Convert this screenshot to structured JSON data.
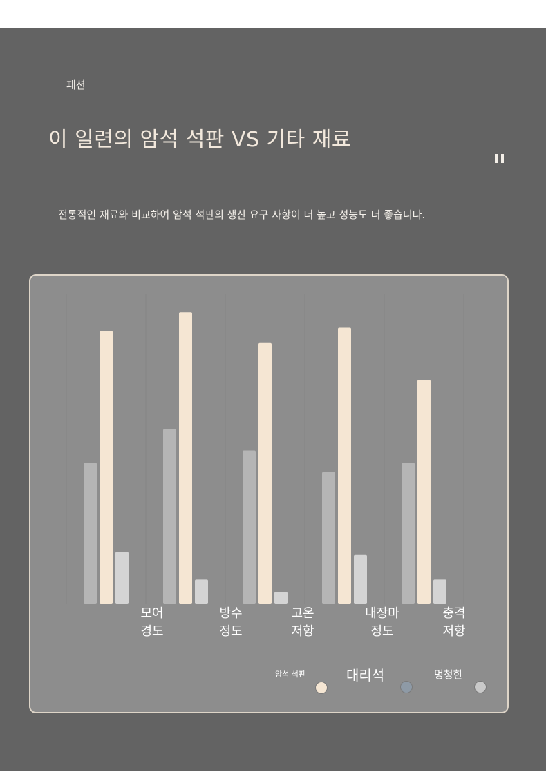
{
  "header": {
    "category": "패션",
    "title": "이 일련의 암석 석판 VS 기타 재료",
    "subtitle": "전통적인 재료와 비교하여 암석 석판의 생산 요구 사항이 더 높고 성능도 더 좋습니다."
  },
  "controls": {
    "pause_icon": "pause-icon"
  },
  "colors": {
    "panel": "#636363",
    "chart_bg": "#8d8d8d",
    "rock_slab": "#f5e6d3",
    "marble": "#b5b5b5",
    "other": "#d4d4d4"
  },
  "chart_data": {
    "type": "bar",
    "categories": [
      "모어\n경도",
      "방수\n정도",
      "고온\n저항",
      "내장마\n정도",
      "충격\n저항"
    ],
    "series": [
      {
        "name": "대리석",
        "values": [
          46,
          57,
          50,
          43,
          46
        ]
      },
      {
        "name": "암석 석판",
        "values": [
          89,
          95,
          85,
          90,
          73
        ]
      },
      {
        "name": "멍청한",
        "values": [
          17,
          8,
          4,
          16,
          8
        ]
      }
    ],
    "ylim": [
      0,
      100
    ],
    "grid": true,
    "legend": [
      {
        "label": "암석 석판",
        "color": "#f5e6d3"
      },
      {
        "label": "대리석",
        "color": "#8e9aa6"
      },
      {
        "label": "멍청한",
        "color": "#c9c9c9"
      }
    ],
    "legend_position": "bottom-right"
  }
}
